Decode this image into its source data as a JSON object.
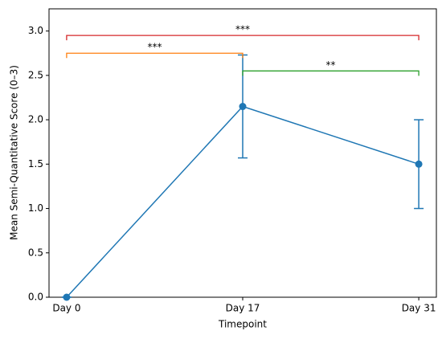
{
  "chart_data": {
    "type": "line",
    "xlabel": "Timepoint",
    "ylabel": "Mean Semi-Quantitative Score (0–3)",
    "categories": [
      "Day 0",
      "Day 17",
      "Day 31"
    ],
    "series": [
      {
        "color": "#1f77b4",
        "values": [
          0,
          2.15,
          1.5
        ],
        "errors": [
          0,
          0.58,
          0.5
        ]
      }
    ],
    "ylim": [
      0,
      3.25
    ],
    "yticks": [
      {
        "value": 0,
        "label": "0.0"
      },
      {
        "value": 0.5,
        "label": "0.5"
      },
      {
        "value": 1,
        "label": "1.0"
      },
      {
        "value": 1.5,
        "label": "1.5"
      },
      {
        "value": 2,
        "label": "2.0"
      },
      {
        "value": 2.5,
        "label": "2.5"
      },
      {
        "value": 3,
        "label": "3.0"
      }
    ],
    "grid": false,
    "annotations": [
      {
        "label": "***",
        "from": "Day 0",
        "to": "Day 31",
        "y": 2.95,
        "color": "#d62728"
      },
      {
        "label": "***",
        "from": "Day 0",
        "to": "Day 17",
        "y": 2.75,
        "color": "#ff7f0e"
      },
      {
        "label": "**",
        "from": "Day 17",
        "to": "Day 31",
        "y": 2.55,
        "color": "#2ca02c"
      }
    ]
  }
}
